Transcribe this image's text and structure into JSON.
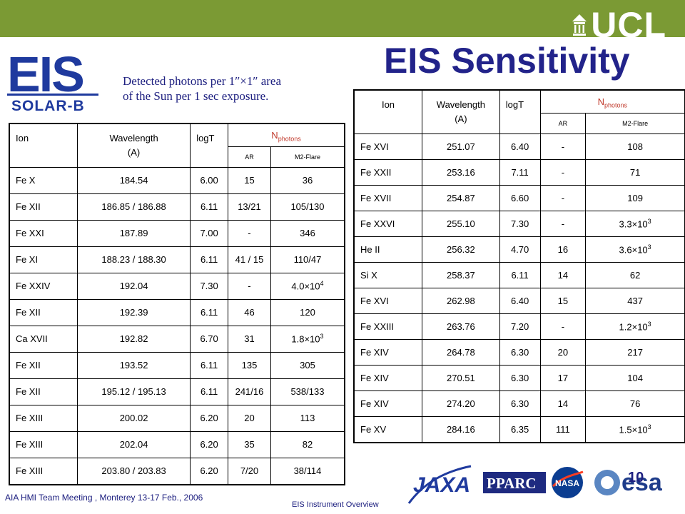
{
  "header": {
    "ucl_logo": "UCL",
    "title": "EIS Sensitivity"
  },
  "logo": {
    "eis": "EIS",
    "solar_b": "SOLAR-B"
  },
  "caption": {
    "line1": "Detected photons per 1″×1″ area",
    "line2": "of the Sun per 1 sec exposure."
  },
  "table_headers": {
    "ion": "Ion",
    "wavelength": "Wavelength",
    "wavelength_unit": "(A)",
    "logt": "logT",
    "n": "N",
    "n_sub": "photons",
    "ar": "AR",
    "flare": "M2-Flare"
  },
  "table_left": {
    "rows": [
      {
        "ion": "Fe X",
        "wl": "184.54",
        "logt": "6.00",
        "ar": "15",
        "flare": "36"
      },
      {
        "ion": "Fe XII",
        "wl": "186.85 / 186.88",
        "logt": "6.11",
        "ar": "13/21",
        "flare": "105/130"
      },
      {
        "ion": "Fe XXI",
        "wl": "187.89",
        "logt": "7.00",
        "ar": "-",
        "flare": "346"
      },
      {
        "ion": "Fe XI",
        "wl": "188.23 / 188.30",
        "logt": "6.11",
        "ar": "41 / 15",
        "flare": "110/47"
      },
      {
        "ion": "Fe XXIV",
        "wl": "192.04",
        "logt": "7.30",
        "ar": "-",
        "flare_m": "4.0×10",
        "flare_e": "4"
      },
      {
        "ion": "Fe XII",
        "wl": "192.39",
        "logt": "6.11",
        "ar": "46",
        "flare": "120"
      },
      {
        "ion": "Ca XVII",
        "wl": "192.82",
        "logt": "6.70",
        "ar": "31",
        "flare_m": "1.8×10",
        "flare_e": "3"
      },
      {
        "ion": "Fe XII",
        "wl": "193.52",
        "logt": "6.11",
        "ar": "135",
        "flare": "305"
      },
      {
        "ion": "Fe XII",
        "wl": "195.12 / 195.13",
        "logt": "6.11",
        "ar": "241/16",
        "flare": "538/133"
      },
      {
        "ion": "Fe XIII",
        "wl": "200.02",
        "logt": "6.20",
        "ar": "20",
        "flare": "113"
      },
      {
        "ion": "Fe XIII",
        "wl": "202.04",
        "logt": "6.20",
        "ar": "35",
        "flare": "82"
      },
      {
        "ion": "Fe XIII",
        "wl": "203.80 / 203.83",
        "logt": "6.20",
        "ar": "7/20",
        "flare": "38/114"
      }
    ]
  },
  "table_right": {
    "rows": [
      {
        "ion": "Fe XVI",
        "wl": "251.07",
        "logt": "6.40",
        "ar": "-",
        "flare": "108"
      },
      {
        "ion": "Fe XXII",
        "wl": "253.16",
        "logt": "7.11",
        "ar": "-",
        "flare": "71"
      },
      {
        "ion": "Fe XVII",
        "wl": "254.87",
        "logt": "6.60",
        "ar": "-",
        "flare": "109"
      },
      {
        "ion": "Fe XXVI",
        "wl": "255.10",
        "logt": "7.30",
        "ar": "-",
        "flare_m": "3.3×10",
        "flare_e": "3"
      },
      {
        "ion": "He II",
        "wl": "256.32",
        "logt": "4.70",
        "ar": "16",
        "flare_m": "3.6×10",
        "flare_e": "3"
      },
      {
        "ion": "Si X",
        "wl": "258.37",
        "logt": "6.11",
        "ar": "14",
        "flare": "62"
      },
      {
        "ion": "Fe XVI",
        "wl": "262.98",
        "logt": "6.40",
        "ar": "15",
        "flare": "437"
      },
      {
        "ion": "Fe XXIII",
        "wl": "263.76",
        "logt": "7.20",
        "ar": "-",
        "flare_m": "1.2×10",
        "flare_e": "3"
      },
      {
        "ion": "Fe XIV",
        "wl": "264.78",
        "logt": "6.30",
        "ar": "20",
        "flare": "217"
      },
      {
        "ion": "Fe XIV",
        "wl": "270.51",
        "logt": "6.30",
        "ar": "17",
        "flare": "104"
      },
      {
        "ion": "Fe XIV",
        "wl": "274.20",
        "logt": "6.30",
        "ar": "14",
        "flare": "76"
      },
      {
        "ion": "Fe XV",
        "wl": "284.16",
        "logt": "6.35",
        "ar": "111",
        "flare_m": "1.5×10",
        "flare_e": "3"
      }
    ]
  },
  "footer": {
    "meeting": "AIA HMI Team Meeting , Monterey  13-17 Feb., 2006",
    "center": "EIS Instrument Overview",
    "page": "10"
  },
  "logos": {
    "jaxa": "JAXA",
    "pparc": "PPARC",
    "nasa": "NASA",
    "esa": "esa"
  },
  "colors": {
    "topbar": "#7b9a34",
    "title": "#22238a",
    "eis_blue": "#1f3a9e",
    "n_header": "#c0392b"
  }
}
